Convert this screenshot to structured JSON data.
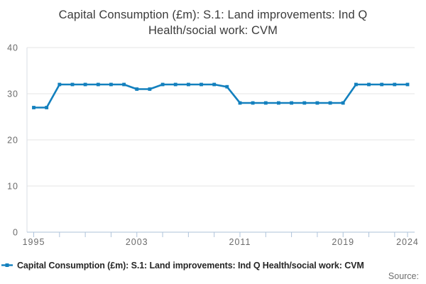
{
  "title": "Capital Consumption (£m): S.1: Land improvements: Ind Q Health/social work: CVM",
  "title_lines": {
    "0": "Capital Consumption (£m): S.1: Land improvements: Ind Q",
    "1": "Health/social work: CVM"
  },
  "legend": {
    "label": "Capital Consumption (£m): S.1: Land improvements: Ind Q Health/social work: CVM"
  },
  "source_label": "Source:",
  "colors": {
    "line": "#1380be",
    "grid": "#e6e6e6",
    "axis": "#aec3da",
    "y_axis_line": "#d9dee6",
    "tick_text": "#6b6b6b",
    "title_text": "#3b3b3b",
    "legend_text": "#262626",
    "source_text": "#6f6f6f"
  },
  "chart_data": {
    "type": "line",
    "title": "Capital Consumption (£m): S.1: Land improvements: Ind Q Health/social work: CVM",
    "xlabel": "",
    "ylabel": "",
    "x": [
      1995,
      1996,
      1997,
      1998,
      1999,
      2000,
      2001,
      2002,
      2003,
      2004,
      2005,
      2006,
      2007,
      2008,
      2009,
      2010,
      2011,
      2012,
      2013,
      2014,
      2015,
      2016,
      2017,
      2018,
      2019,
      2020,
      2021,
      2022,
      2023,
      2024
    ],
    "series": [
      {
        "name": "Capital Consumption (£m): S.1: Land improvements: Ind Q Health/social work: CVM",
        "values": [
          27,
          27,
          32,
          32,
          32,
          32,
          32,
          32,
          31,
          31,
          32,
          32,
          32,
          32,
          32,
          31.5,
          28,
          28,
          28,
          28,
          28,
          28,
          28,
          28,
          28,
          32,
          32,
          32,
          32,
          32
        ]
      }
    ],
    "ylim": [
      0,
      40
    ],
    "yticks": [
      0,
      10,
      20,
      30,
      40
    ],
    "xticks_labeled": [
      1995,
      2003,
      2011,
      2019,
      2024
    ],
    "xtick_minor_step": 2,
    "grid": true,
    "marker": "square",
    "legend_position": "bottom-left"
  }
}
